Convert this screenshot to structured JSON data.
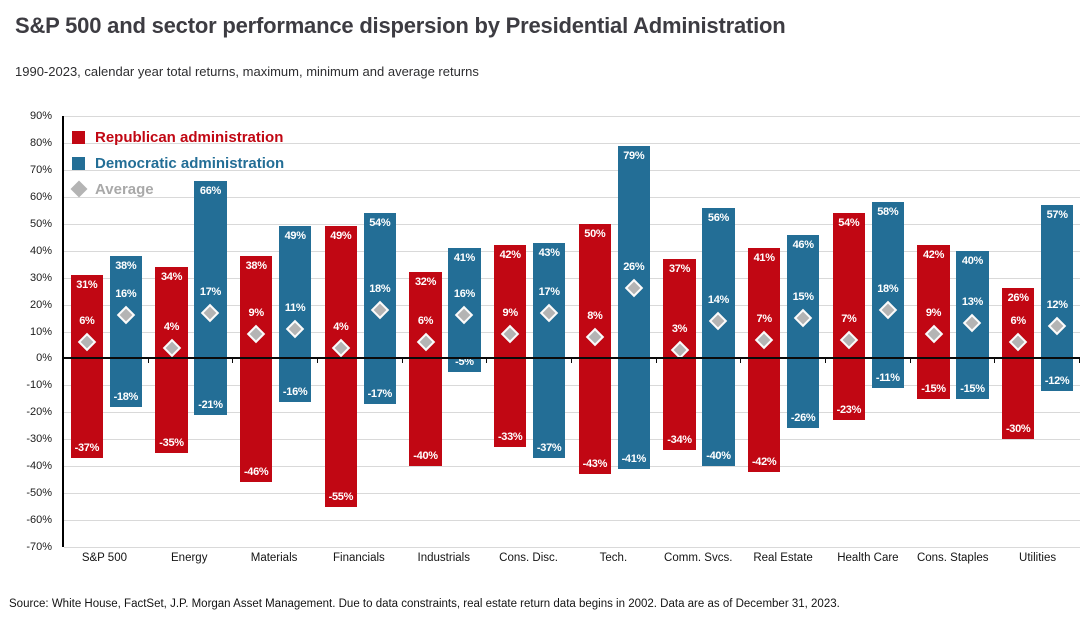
{
  "header": {},
  "legend": {
    "items": [
      {
        "id": "republican",
        "label": "Republican administration"
      },
      {
        "id": "democratic",
        "label": "Democratic administration"
      },
      {
        "id": "average",
        "label": "Average"
      }
    ]
  },
  "colors": {
    "republican": "#c10713",
    "democratic": "#236e96",
    "average": "#b4b4b4",
    "gridline": "#d9d9d9",
    "zero_line": "#0a0a0a"
  },
  "chart_data": {
    "type": "bar",
    "subtype": "floating-range-bars-with-average-marker",
    "title": "S&P 500 and sector performance dispersion by Presidential Administration",
    "subtitle": "1990-2023, calendar year total returns, maximum, minimum and average returns",
    "categories": [
      "S&P 500",
      "Energy",
      "Materials",
      "Financials",
      "Industrials",
      "Cons. Disc.",
      "Tech.",
      "Comm. Svcs.",
      "Real Estate",
      "Health Care",
      "Cons. Staples",
      "Utilities"
    ],
    "series": [
      {
        "name": "Republican administration",
        "color_key": "republican",
        "max": [
          31,
          34,
          38,
          49,
          32,
          42,
          50,
          37,
          41,
          54,
          42,
          26
        ],
        "avg": [
          6,
          4,
          9,
          4,
          6,
          9,
          8,
          3,
          7,
          7,
          9,
          6
        ],
        "min": [
          -37,
          -35,
          -46,
          -55,
          -40,
          -33,
          -43,
          -34,
          -42,
          -23,
          -15,
          -30
        ]
      },
      {
        "name": "Democratic administration",
        "color_key": "democratic",
        "max": [
          38,
          66,
          49,
          54,
          41,
          43,
          79,
          56,
          46,
          58,
          40,
          57
        ],
        "avg": [
          16,
          17,
          11,
          18,
          16,
          17,
          26,
          14,
          15,
          18,
          13,
          12
        ],
        "min": [
          -18,
          -21,
          -16,
          -17,
          -5,
          -37,
          -41,
          -40,
          -26,
          -11,
          -15,
          -12
        ]
      }
    ],
    "ylim": [
      -70,
      90
    ],
    "yticks": [
      "90%",
      "80%",
      "70%",
      "60%",
      "50%",
      "40%",
      "30%",
      "20%",
      "10%",
      "0%",
      "-10%",
      "-20%",
      "-30%",
      "-40%",
      "-50%",
      "-60%",
      "-70%"
    ],
    "value_suffix": "%",
    "grid": true,
    "legend_position": "top-left"
  },
  "footer": {
    "source": "Source: White House, FactSet, J.P. Morgan Asset Management. Due to data constraints, real estate return data begins in 2002. Data are as of December 31, 2023."
  }
}
